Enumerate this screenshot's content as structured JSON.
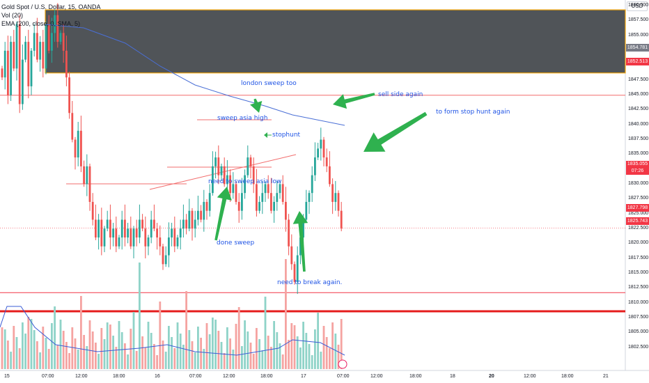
{
  "legend": {
    "symbol": "Gold Spot / U.S. Dollar, 15, OANDA",
    "vol": "Vol (20)",
    "ema": "EMA (200, close, 0, SMA, 5)"
  },
  "currency": "USD",
  "y_axis_labels": [
    "1860.000",
    "1857.500",
    "1855.000",
    "1852.500",
    "1850.000",
    "1847.500",
    "1845.000",
    "1842.500",
    "1840.000",
    "1837.500",
    "1835.000",
    "1832.500",
    "1830.000",
    "1827.500",
    "1825.000",
    "1822.500",
    "1820.000",
    "1817.500",
    "1815.000",
    "1812.500",
    "1810.000",
    "1807.500",
    "1805.000",
    "1802.500"
  ],
  "x_axis_labels": [
    {
      "text": "15",
      "bold": false
    },
    {
      "text": "07:00",
      "bold": false
    },
    {
      "text": "12:00",
      "bold": false
    },
    {
      "text": "18:00",
      "bold": false
    },
    {
      "text": "16",
      "bold": false
    },
    {
      "text": "07:00",
      "bold": false
    },
    {
      "text": "12:00",
      "bold": false
    },
    {
      "text": "18:00",
      "bold": false
    },
    {
      "text": "17",
      "bold": false
    },
    {
      "text": "07:00",
      "bold": false
    },
    {
      "text": "12:00",
      "bold": false
    },
    {
      "text": "18:00",
      "bold": false
    },
    {
      "text": "18",
      "bold": false
    },
    {
      "text": "07:00",
      "bold": false
    },
    {
      "text": "20",
      "bold": true
    },
    {
      "text": "12:00",
      "bold": false
    },
    {
      "text": "18:00",
      "bold": false
    },
    {
      "text": "19",
      "bold": false
    },
    {
      "text": "07:00",
      "bold": false
    },
    {
      "text": "18:00",
      "bold": false
    },
    {
      "text": "21",
      "bold": false
    }
  ],
  "price_tags": {
    "zone_top": {
      "text": "1854.781",
      "color": "#787b86"
    },
    "zone_bottom": {
      "text": "1852.513",
      "color": "#f23645"
    },
    "current": {
      "text": "1835.055",
      "time": "07:26",
      "color": "#f23645"
    },
    "low1": {
      "text": "1827.798",
      "color": "#f23645"
    },
    "low2": {
      "text": "1825.743",
      "color": "#f23645"
    }
  },
  "annotations": {
    "london": "london sweep too",
    "sell_side": "sell side again",
    "stop_hunt": "to form stop hunt again",
    "sweep_asia_high": "sweep asia high",
    "stophunt": "stophunt",
    "need_sweep_low": "need to sweep asia low",
    "done_sweep": "done sweep",
    "need_break": "need to break again."
  },
  "colors": {
    "up": "#26a69a",
    "down": "#ef5350",
    "ema": "#4a6fd6",
    "annotation": "#1e53e5",
    "arrow": "#2fb14f",
    "zone_fill": "#505458",
    "zone_border": "#f0a30a"
  },
  "chart_data": {
    "type": "candlestick",
    "symbol": "XAUUSD",
    "timeframe": "15",
    "ylim": [
      1801.5,
      1861
    ],
    "levels": [
      {
        "name": "supply zone",
        "from": 1852.5,
        "to": 1859.6
      },
      {
        "name": "level",
        "value": 1850.0
      },
      {
        "name": "level",
        "value": 1827.8
      },
      {
        "name": "level",
        "value": 1825.7
      }
    ],
    "last_price": 1835.055
  }
}
